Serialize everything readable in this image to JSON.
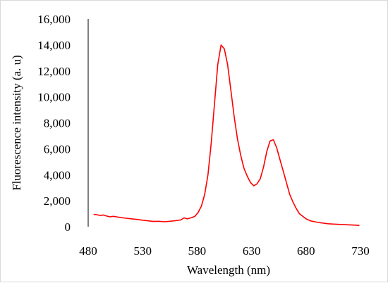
{
  "chart_data": {
    "type": "line",
    "title": "",
    "xlabel": "Wavelength  (nm)",
    "ylabel": "Fluorescence intensity (a. u)",
    "xlim": [
      480,
      730
    ],
    "ylim": [
      0,
      16000
    ],
    "x_ticks": [
      480,
      530,
      580,
      630,
      680,
      730
    ],
    "x_tick_labels": [
      "480",
      "530",
      "580",
      "630",
      "680",
      "730"
    ],
    "y_ticks": [
      0,
      2000,
      4000,
      6000,
      8000,
      10000,
      12000,
      14000,
      16000
    ],
    "y_tick_labels": [
      "0",
      "2,000",
      "4,000",
      "6,000",
      "8,000",
      "10,000",
      "12,000",
      "14,000",
      "16,000"
    ],
    "grid": false,
    "legend": "none",
    "series": [
      {
        "color": "#ff0000",
        "x": [
          485,
          488,
          491,
          494,
          497,
          500,
          503,
          506,
          510,
          515,
          520,
          525,
          530,
          535,
          540,
          545,
          550,
          555,
          560,
          565,
          568,
          571,
          575,
          578,
          581,
          584,
          587,
          590,
          593,
          596,
          599,
          602,
          605,
          608,
          611,
          614,
          617,
          620,
          623,
          626,
          629,
          632,
          635,
          638,
          641,
          644,
          647,
          650,
          653,
          656,
          659,
          662,
          665,
          668,
          671,
          674,
          677,
          680,
          684,
          688,
          692,
          696,
          700,
          705,
          710,
          715,
          720,
          725,
          729
        ],
        "y": [
          950,
          920,
          860,
          900,
          820,
          760,
          800,
          760,
          700,
          650,
          600,
          560,
          500,
          450,
          400,
          420,
          380,
          420,
          460,
          520,
          680,
          600,
          700,
          800,
          1100,
          1600,
          2500,
          4000,
          6500,
          9500,
          12500,
          14000,
          13700,
          12500,
          10500,
          8500,
          6800,
          5500,
          4500,
          3900,
          3400,
          3150,
          3300,
          3700,
          4600,
          5800,
          6600,
          6700,
          6100,
          5200,
          4300,
          3400,
          2500,
          1900,
          1400,
          1000,
          800,
          600,
          450,
          380,
          320,
          270,
          230,
          200,
          180,
          160,
          140,
          120,
          100
        ]
      }
    ]
  }
}
